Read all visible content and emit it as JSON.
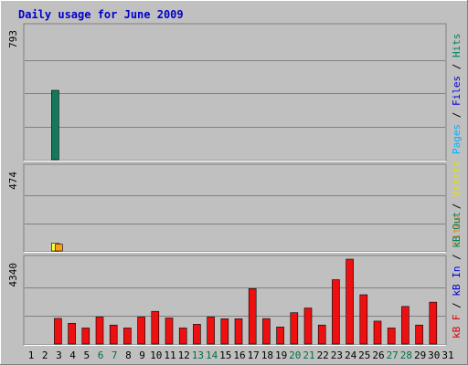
{
  "chart_data": {
    "type": "bar",
    "title": "Daily usage for June 2009",
    "days": [
      "1",
      "2",
      "3",
      "4",
      "5",
      "6",
      "7",
      "8",
      "9",
      "10",
      "11",
      "12",
      "13",
      "14",
      "15",
      "16",
      "17",
      "18",
      "19",
      "20",
      "21",
      "22",
      "23",
      "24",
      "25",
      "26",
      "27",
      "28",
      "29",
      "30",
      "31"
    ],
    "weekend_days": [
      "6",
      "7",
      "13",
      "14",
      "20",
      "21",
      "27",
      "28"
    ],
    "panels": [
      {
        "id": "hits",
        "ymax_label": "793",
        "ymax": 793,
        "right_labels": [
          {
            "text": "Pages",
            "color": "#00b0ff"
          },
          {
            "text": " / ",
            "color": "#000000"
          },
          {
            "text": "Files",
            "color": "#0000d8"
          },
          {
            "text": " / ",
            "color": "#000000"
          },
          {
            "text": "Hits",
            "color": "#008060"
          }
        ],
        "series": [
          {
            "name": "Hits",
            "color": "#127a5a",
            "values": [
              0,
              0,
              412,
              0,
              0,
              0,
              0,
              0,
              0,
              0,
              0,
              0,
              0,
              0,
              0,
              0,
              0,
              0,
              0,
              0,
              0,
              0,
              0,
              0,
              0,
              0,
              0,
              0,
              0,
              0,
              0
            ]
          },
          {
            "name": "Files",
            "color": "#1010c8",
            "values": [
              0,
              0,
              0,
              0,
              0,
              0,
              0,
              0,
              0,
              0,
              0,
              0,
              0,
              0,
              0,
              0,
              0,
              0,
              0,
              0,
              0,
              0,
              0,
              0,
              0,
              0,
              0,
              0,
              0,
              0,
              0
            ]
          },
          {
            "name": "Pages",
            "color": "#20b8ff",
            "values": [
              0,
              0,
              0,
              0,
              0,
              0,
              0,
              0,
              0,
              0,
              0,
              0,
              0,
              0,
              0,
              0,
              0,
              0,
              0,
              0,
              0,
              0,
              0,
              0,
              0,
              0,
              0,
              0,
              0,
              0,
              0
            ]
          }
        ]
      },
      {
        "id": "visits",
        "ymax_label": "474",
        "ymax": 474,
        "right_labels": [
          {
            "text": "Sites",
            "color": "#ff8000"
          },
          {
            "text": " / ",
            "color": "#000000"
          },
          {
            "text": "Visits",
            "color": "#e0e000"
          }
        ],
        "series": [
          {
            "name": "Visits",
            "color": "#ffff40",
            "values": [
              0,
              0,
              45,
              0,
              0,
              0,
              0,
              0,
              0,
              0,
              0,
              0,
              0,
              0,
              0,
              0,
              0,
              0,
              0,
              0,
              0,
              0,
              0,
              0,
              0,
              0,
              0,
              0,
              0,
              0,
              0
            ]
          },
          {
            "name": "Sites",
            "color": "#ff9c18",
            "values": [
              0,
              0,
              38,
              0,
              0,
              0,
              0,
              0,
              0,
              0,
              0,
              0,
              0,
              0,
              0,
              0,
              0,
              0,
              0,
              0,
              0,
              0,
              0,
              0,
              0,
              0,
              0,
              0,
              0,
              0,
              0
            ]
          }
        ]
      },
      {
        "id": "kbytes",
        "ymax_label": "4340",
        "ymax": 4340,
        "right_labels": [
          {
            "text": "kB F",
            "color": "#e00000"
          },
          {
            "text": " / ",
            "color": "#000000"
          },
          {
            "text": "kB In",
            "color": "#0000d8"
          },
          {
            "text": " / ",
            "color": "#000000"
          },
          {
            "text": "kB Out",
            "color": "#008060"
          }
        ],
        "series": [
          {
            "name": "kB F",
            "color": "#ee1010",
            "values": [
              0,
              0,
              1310,
              1060,
              820,
              1380,
              970,
              820,
              1380,
              1670,
              1330,
              820,
              1010,
              1380,
              1290,
              1290,
              2830,
              1300,
              870,
              1600,
              1840,
              970,
              3290,
              4340,
              2520,
              1170,
              820,
              1920,
              970,
              2140,
              0
            ]
          }
        ]
      }
    ]
  }
}
